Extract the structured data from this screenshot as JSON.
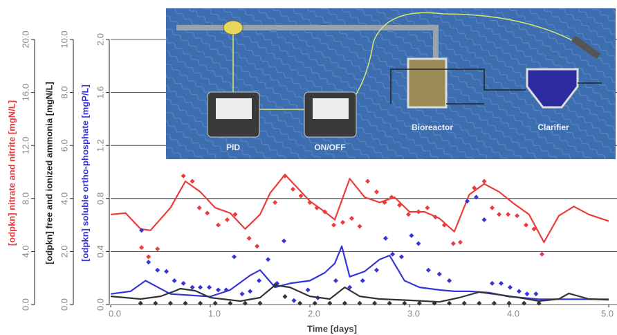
{
  "chart_data": {
    "type": "line",
    "x_label": "Time [days]",
    "y_label": "[odpkn] nitrate and nitrite [mgN/L]",
    "y2_label": "[odpkn] free and ionized ammonia [mgN/L]",
    "y3_label": "[odpkn] soluble ortho-phosphate [mgP/L]",
    "xlim": [
      0,
      5
    ],
    "xticks": [
      {
        "value": 0,
        "label": "0.0"
      },
      {
        "value": 1,
        "label": "1.0"
      },
      {
        "value": 2,
        "label": "2.0"
      },
      {
        "value": 3,
        "label": "3.0"
      },
      {
        "value": 4,
        "label": "4.0"
      },
      {
        "value": 5,
        "label": "5.0"
      }
    ],
    "ylim": [
      0,
      20
    ],
    "yticks": [
      {
        "value": 0,
        "label": "0.0"
      },
      {
        "value": 4,
        "label": "4.0"
      },
      {
        "value": 8,
        "label": "8.0"
      },
      {
        "value": 12,
        "label": "12.0"
      },
      {
        "value": 16,
        "label": "16.0"
      },
      {
        "value": 20,
        "label": "20.0"
      }
    ],
    "y2lim": [
      0,
      10
    ],
    "y2ticks": [
      {
        "value": 0,
        "label": "0.0"
      },
      {
        "value": 2,
        "label": "2.0"
      },
      {
        "value": 4,
        "label": "4.0"
      },
      {
        "value": 6,
        "label": "6.0"
      },
      {
        "value": 8,
        "label": "8.0"
      },
      {
        "value": 10,
        "label": "10.0"
      }
    ],
    "y3lim": [
      0,
      2
    ],
    "y3ticks": [
      {
        "value": 0,
        "label": "0.0"
      },
      {
        "value": 0.4,
        "label": "0.4"
      },
      {
        "value": 0.8,
        "label": "0.8"
      },
      {
        "value": 1.2,
        "label": "1.2"
      },
      {
        "value": 1.6,
        "label": "1.6"
      },
      {
        "value": 2,
        "label": "2.0"
      }
    ],
    "grid": true,
    "inset_labels": [
      "PID",
      "ON/OFF",
      "Bioreactor",
      "Clarifier"
    ],
    "series": [
      {
        "type": "line",
        "axis": "y",
        "color": "#ee3a3a",
        "x": [
          0,
          0.15,
          0.3,
          0.4,
          0.6,
          0.75,
          0.9,
          1.05,
          1.2,
          1.35,
          1.5,
          1.6,
          1.75,
          1.9,
          2.0,
          2.15,
          2.25,
          2.4,
          2.55,
          2.7,
          2.85,
          3.0,
          3.15,
          3.3,
          3.45,
          3.6,
          3.75,
          3.9,
          4.05,
          4.2,
          4.35,
          4.5,
          4.65,
          4.8,
          5.0
        ],
        "values": [
          6.8,
          6.9,
          5.7,
          5.6,
          7.3,
          9.3,
          8.5,
          7.3,
          6.9,
          5.7,
          6.8,
          8.4,
          9.8,
          8.6,
          7.8,
          7.0,
          6.4,
          9.5,
          8.1,
          7.7,
          8.1,
          7.0,
          7.0,
          6.5,
          5.5,
          8.3,
          9.1,
          8.5,
          7.6,
          6.8,
          4.7,
          6.7,
          7.4,
          6.8,
          6.3
        ]
      },
      {
        "type": "scatter",
        "axis": "y",
        "color": "#ee3a3a",
        "x": [
          0.31,
          0.38,
          0.47,
          0.73,
          0.82,
          0.89,
          0.97,
          1.08,
          1.17,
          1.25,
          1.39,
          1.47,
          1.65,
          1.75,
          1.83,
          1.91,
          2.0,
          2.07,
          2.15,
          2.24,
          2.33,
          2.42,
          2.5,
          2.58,
          2.67,
          2.75,
          2.82,
          2.9,
          2.99,
          3.09,
          3.18,
          3.26,
          3.35,
          3.44,
          3.51,
          3.65,
          3.75,
          3.83,
          3.9,
          3.99,
          4.08,
          4.17,
          4.25,
          4.33
        ],
        "values": [
          4.3,
          3.6,
          4.2,
          9.7,
          9.3,
          7.3,
          6.9,
          6.0,
          6.4,
          6.8,
          5.0,
          4.4,
          7.7,
          9.7,
          8.7,
          8.2,
          7.7,
          7.3,
          7.0,
          6.0,
          6.2,
          6.5,
          5.9,
          9.3,
          8.5,
          7.7,
          8.1,
          7.5,
          6.8,
          7.0,
          7.3,
          6.6,
          6.0,
          4.6,
          4.7,
          8.8,
          9.3,
          7.3,
          6.8,
          6.8,
          6.7,
          6.0,
          5.7,
          3.8
        ]
      },
      {
        "type": "line",
        "axis": "y3",
        "color": "#3434d8",
        "x": [
          0,
          0.2,
          0.35,
          0.45,
          0.6,
          0.8,
          1.0,
          1.2,
          1.4,
          1.5,
          1.65,
          1.8,
          2.0,
          2.15,
          2.25,
          2.32,
          2.4,
          2.55,
          2.7,
          2.8,
          2.95,
          3.1,
          3.3,
          3.45,
          3.6,
          3.8,
          4.0,
          4.3,
          4.6,
          5.0
        ],
        "values": [
          0.08,
          0.1,
          0.18,
          0.14,
          0.08,
          0.07,
          0.06,
          0.11,
          0.22,
          0.26,
          0.13,
          0.16,
          0.18,
          0.24,
          0.31,
          0.44,
          0.21,
          0.25,
          0.34,
          0.37,
          0.18,
          0.13,
          0.11,
          0.1,
          0.1,
          0.09,
          0.06,
          0.04,
          0.04,
          0.04
        ]
      },
      {
        "type": "scatter",
        "axis": "y3",
        "color": "#3434d8",
        "x": [
          0.31,
          0.38,
          0.47,
          0.56,
          0.64,
          0.73,
          0.82,
          0.9,
          0.99,
          1.08,
          1.16,
          1.24,
          1.32,
          1.4,
          1.49,
          1.58,
          1.67,
          1.74,
          1.84,
          1.98,
          2.08,
          2.26,
          2.4,
          2.53,
          2.67,
          2.76,
          2.83,
          2.92,
          3.02,
          3.09,
          3.19,
          3.3,
          3.4,
          3.58,
          3.67,
          3.75,
          3.83,
          3.92,
          4.01,
          4.1,
          4.18,
          4.27
        ],
        "values": [
          0.56,
          0.32,
          0.26,
          0.25,
          0.18,
          0.16,
          0.13,
          0.13,
          0.13,
          0.11,
          0.11,
          0.36,
          0.08,
          0.1,
          0.18,
          0.34,
          0.16,
          0.48,
          0.03,
          0.11,
          0.05,
          0.18,
          0.13,
          0.18,
          0.26,
          0.5,
          0.38,
          0.36,
          0.52,
          0.46,
          0.26,
          0.23,
          0.18,
          0.78,
          0.81,
          0.64,
          0.16,
          0.16,
          0.13,
          0.1,
          0.08,
          0.08
        ]
      },
      {
        "type": "line",
        "axis": "y2",
        "color": "#333333",
        "x": [
          0,
          0.3,
          0.5,
          0.65,
          0.7,
          0.85,
          1.0,
          1.3,
          1.5,
          1.65,
          1.8,
          2.0,
          2.2,
          2.35,
          2.5,
          2.7,
          3.0,
          3.3,
          3.5,
          3.7,
          3.9,
          4.1,
          4.3,
          4.5,
          4.6,
          4.8,
          5.0
        ],
        "values": [
          0.31,
          0.21,
          0.31,
          0.52,
          0.6,
          0.52,
          0.26,
          0.13,
          0.26,
          0.73,
          0.65,
          0.31,
          0.21,
          0.65,
          0.31,
          0.21,
          0.16,
          0.1,
          0.26,
          0.47,
          0.37,
          0.26,
          0.13,
          0.21,
          0.42,
          0.21,
          0.18
        ]
      },
      {
        "type": "scatter",
        "axis": "y2",
        "color": "#333333",
        "x": [
          0.3,
          0.45,
          0.6,
          0.75,
          0.9,
          1.05,
          1.2,
          1.35,
          1.5,
          1.65,
          1.75,
          1.9,
          2.05,
          2.2,
          2.35,
          2.5,
          2.65,
          2.8,
          2.95,
          3.1,
          3.25,
          3.4,
          3.55,
          3.7,
          3.85,
          4.0,
          4.15,
          4.3
        ],
        "values": [
          0.05,
          0.05,
          0.05,
          0.05,
          0.05,
          0.05,
          0.05,
          0.05,
          0.05,
          0.73,
          0.3,
          0.05,
          0.05,
          0.05,
          0.05,
          0.05,
          0.05,
          0.05,
          0.05,
          0.05,
          0.05,
          0.05,
          0.05,
          0.05,
          0.05,
          0.05,
          0.05,
          0.05
        ]
      }
    ]
  }
}
